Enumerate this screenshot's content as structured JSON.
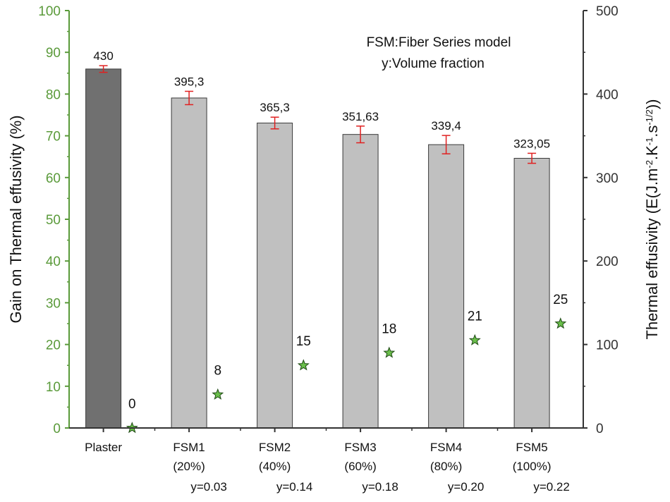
{
  "chart_data": {
    "type": "bar",
    "annotations": [
      "FSM:Fiber Series model",
      "y:Volume fraction"
    ],
    "categories": [
      {
        "name": "Plaster",
        "percent": "",
        "fraction": ""
      },
      {
        "name": "FSM1",
        "percent": "(20%)",
        "fraction": "y=0.03"
      },
      {
        "name": "FSM2",
        "percent": "(40%)",
        "fraction": "y=0.14"
      },
      {
        "name": "FSM3",
        "percent": "(60%)",
        "fraction": "y=0.18"
      },
      {
        "name": "FSM4",
        "percent": "(80%)",
        "fraction": "y=0.20"
      },
      {
        "name": "FSM5",
        "percent": "(100%)",
        "fraction": "y=0.22"
      }
    ],
    "effusivity": {
      "name": "Thermal effusivity",
      "axis": "right",
      "values": [
        430,
        395.3,
        365.3,
        351.63,
        339.4,
        323.05
      ],
      "labels": [
        "430",
        "395,3",
        "365,3",
        "351,63",
        "339,4",
        "323,05"
      ],
      "errors": [
        4,
        8,
        7,
        10,
        11,
        6
      ],
      "colors": [
        "#707070",
        "#c0c0c0",
        "#c0c0c0",
        "#c0c0c0",
        "#c0c0c0",
        "#c0c0c0"
      ]
    },
    "gain": {
      "name": "Gain on Thermal effusivity",
      "axis": "left",
      "values": [
        0,
        8,
        15,
        18,
        21,
        25
      ],
      "labels": [
        "0",
        "8",
        "15",
        "18",
        "21",
        "25"
      ],
      "marker": "star",
      "color": "#6abf4b"
    },
    "left_axis": {
      "label": "Gain on Thermal effusivity  (%)",
      "ylim": [
        0,
        100
      ],
      "ticks": [
        "0",
        "10",
        "20",
        "30",
        "40",
        "50",
        "60",
        "70",
        "80",
        "90",
        "100"
      ],
      "color": "#5a9a3a"
    },
    "right_axis": {
      "label_main": "Thermal effusivity (E(J.m",
      "sup1": "-2",
      "mid1": ".K",
      "sup2": "-1",
      "mid2": ".s",
      "sup3": "-1/2",
      "end": "))",
      "ylim": [
        0,
        500
      ],
      "ticks": [
        "0",
        "100",
        "200",
        "300",
        "400",
        "500"
      ]
    },
    "errorbar_color": "#e02020"
  }
}
